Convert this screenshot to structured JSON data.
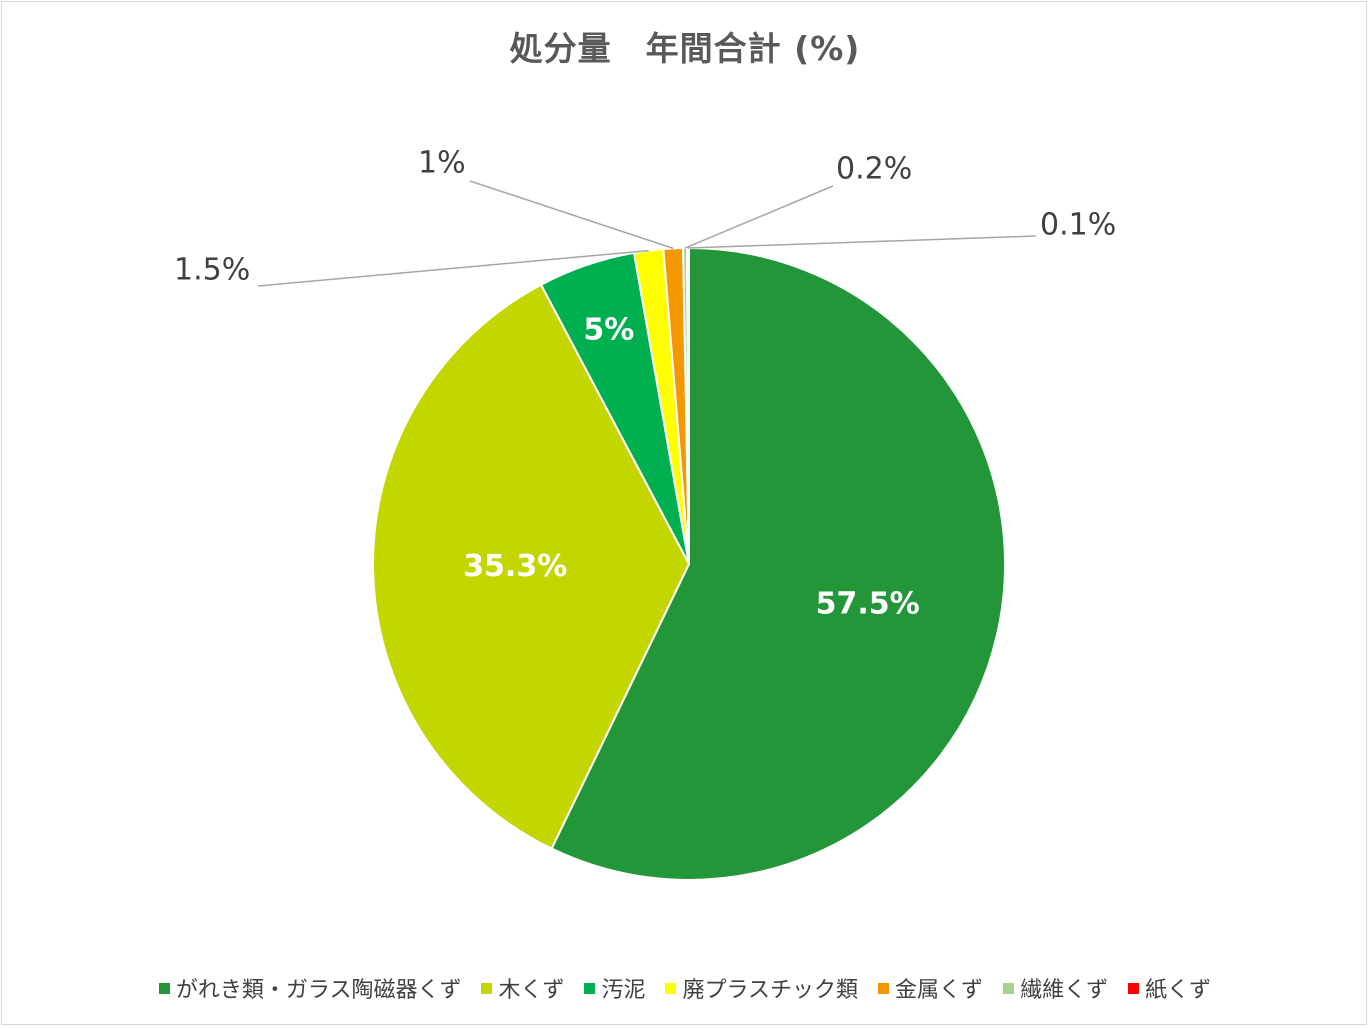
{
  "chart_data": {
    "type": "pie",
    "title": "処分量　年間合計 (%)",
    "categories": [
      "がれき類・ガラス陶磁器くず",
      "木くず",
      "汚泥",
      "廃プラスチック類",
      "金属くず",
      "繊維くず",
      "紙くず"
    ],
    "values": [
      57.5,
      35.3,
      5,
      1.5,
      1,
      0.2,
      0.1
    ],
    "labels": [
      "57.5%",
      "35.3%",
      "5%",
      "1.5%",
      "1%",
      "0.2%",
      "0.1%"
    ],
    "colors": [
      "#239639",
      "#c4d600",
      "#00b050",
      "#ffff00",
      "#f39800",
      "#a9d18e",
      "#ff0000"
    ],
    "label_colors": [
      "#ffffff",
      "#ffffff",
      "#ffffff",
      "#404040",
      "#404040",
      "#404040",
      "#404040"
    ],
    "legend_position": "bottom"
  }
}
